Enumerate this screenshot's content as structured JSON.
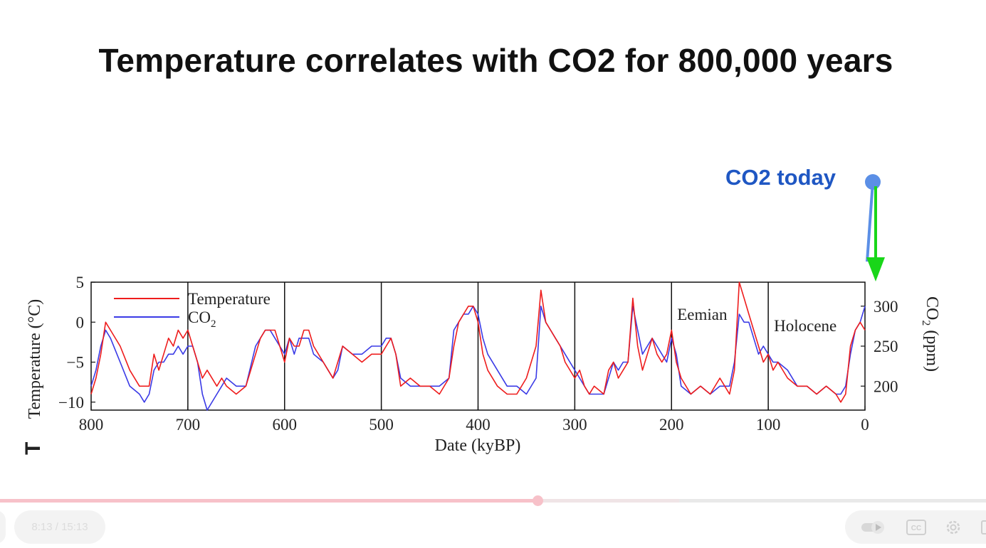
{
  "slide": {
    "title": "Temperature correlates with CO2 for 800,000 years",
    "annotation": "CO2 today",
    "stray_char": "T"
  },
  "colors": {
    "temperature": "#ee1c1c",
    "co2": "#3a3ae6",
    "annotation": "#1f57c3",
    "arrow": "#19d619",
    "dot": "#5b8fe6"
  },
  "chart_data": {
    "type": "line",
    "title": "",
    "xlabel": "Date (kyBP)",
    "ylabel_left": "Temperature (°C)",
    "ylabel_right": "CO2 (ppm)",
    "ylabel_right_sub": "2",
    "xlim": [
      800,
      0
    ],
    "ylim_left": [
      -11,
      5
    ],
    "ylim_right": [
      170,
      330
    ],
    "x_ticks": [
      800,
      700,
      600,
      500,
      400,
      300,
      200,
      100,
      0
    ],
    "x_tick_labels": [
      "800",
      "700",
      "600",
      "500",
      "400",
      "300",
      "200",
      "100",
      "0"
    ],
    "y_left_ticks": [
      5,
      0,
      -5,
      -10
    ],
    "y_left_tick_labels": [
      "5",
      "0",
      "−5",
      "−10"
    ],
    "y_right_ticks": [
      300,
      250,
      200
    ],
    "y_right_tick_labels": [
      "300",
      "250",
      "200"
    ],
    "vertical_lines": [
      700,
      600,
      500,
      400,
      300,
      200,
      100
    ],
    "legend": [
      {
        "name": "Temperature",
        "sub": ""
      },
      {
        "name": "CO",
        "sub": "2"
      }
    ],
    "annotations": [
      {
        "text": "Eemian",
        "x": 200
      },
      {
        "text": "Holocene",
        "x": 100
      }
    ],
    "series": [
      {
        "name": "Temperature",
        "axis": "left",
        "x": [
          800,
          795,
          790,
          785,
          780,
          770,
          760,
          750,
          745,
          740,
          735,
          730,
          725,
          720,
          715,
          710,
          705,
          700,
          695,
          690,
          685,
          680,
          670,
          665,
          660,
          650,
          640,
          630,
          625,
          620,
          615,
          610,
          600,
          595,
          590,
          585,
          580,
          575,
          570,
          560,
          555,
          550,
          545,
          540,
          530,
          520,
          510,
          500,
          495,
          490,
          485,
          480,
          470,
          460,
          450,
          440,
          430,
          425,
          420,
          415,
          410,
          405,
          400,
          395,
          390,
          380,
          370,
          360,
          350,
          340,
          335,
          330,
          325,
          320,
          315,
          310,
          300,
          295,
          290,
          285,
          280,
          270,
          265,
          260,
          255,
          250,
          245,
          240,
          235,
          230,
          225,
          220,
          215,
          210,
          205,
          200,
          195,
          190,
          180,
          170,
          160,
          150,
          140,
          135,
          130,
          125,
          120,
          115,
          110,
          105,
          100,
          95,
          90,
          80,
          70,
          60,
          50,
          40,
          30,
          25,
          20,
          15,
          10,
          5,
          0
        ],
        "values": [
          -9,
          -7,
          -4,
          0,
          -1,
          -3,
          -6,
          -8,
          -8,
          -8,
          -4,
          -6,
          -4,
          -2,
          -3,
          -1,
          -2,
          -1,
          -3,
          -5,
          -7,
          -6,
          -8,
          -7,
          -8,
          -9,
          -8,
          -4,
          -2,
          -1,
          -1,
          -1,
          -5,
          -2,
          -3,
          -3,
          -1,
          -1,
          -3,
          -5,
          -6,
          -7,
          -5,
          -3,
          -4,
          -5,
          -4,
          -4,
          -3,
          -2,
          -4,
          -8,
          -7,
          -8,
          -8,
          -9,
          -7,
          -3,
          0,
          1,
          2,
          2,
          0,
          -4,
          -6,
          -8,
          -9,
          -9,
          -7,
          -3,
          4,
          0,
          -1,
          -2,
          -3,
          -5,
          -7,
          -6,
          -8,
          -9,
          -8,
          -9,
          -6,
          -5,
          -7,
          -6,
          -5,
          3,
          -3,
          -6,
          -4,
          -2,
          -4,
          -5,
          -4,
          -1,
          -5,
          -7,
          -9,
          -8,
          -9,
          -7,
          -9,
          -6,
          5,
          3,
          1,
          -1,
          -3,
          -5,
          -4,
          -6,
          -5,
          -7,
          -8,
          -8,
          -9,
          -8,
          -9,
          -10,
          -9,
          -3,
          -1,
          0,
          -1
        ],
        "color": "#ee1c1c"
      },
      {
        "name": "CO2",
        "axis": "left",
        "x": [
          800,
          795,
          790,
          785,
          780,
          770,
          760,
          750,
          745,
          740,
          735,
          730,
          725,
          720,
          715,
          710,
          705,
          700,
          695,
          690,
          685,
          680,
          670,
          665,
          660,
          650,
          640,
          630,
          625,
          620,
          615,
          610,
          600,
          595,
          590,
          585,
          580,
          575,
          570,
          560,
          555,
          550,
          545,
          540,
          530,
          520,
          510,
          500,
          495,
          490,
          485,
          480,
          470,
          460,
          450,
          440,
          430,
          425,
          420,
          415,
          410,
          405,
          400,
          395,
          390,
          380,
          370,
          360,
          350,
          340,
          335,
          330,
          325,
          320,
          315,
          310,
          300,
          295,
          290,
          285,
          280,
          270,
          265,
          260,
          255,
          250,
          245,
          240,
          235,
          230,
          225,
          220,
          215,
          210,
          205,
          200,
          195,
          190,
          180,
          170,
          160,
          150,
          140,
          135,
          130,
          125,
          120,
          115,
          110,
          105,
          100,
          95,
          90,
          80,
          70,
          60,
          50,
          40,
          30,
          25,
          20,
          15,
          10,
          5,
          0
        ],
        "values": [
          -8,
          -6,
          -3,
          -1,
          -2,
          -5,
          -8,
          -9,
          -10,
          -9,
          -6,
          -5,
          -5,
          -4,
          -4,
          -3,
          -4,
          -3,
          -3,
          -5,
          -9,
          -11,
          -9,
          -8,
          -7,
          -8,
          -8,
          -3,
          -2,
          -1,
          -1,
          -2,
          -4,
          -2,
          -4,
          -2,
          -2,
          -2,
          -4,
          -5,
          -6,
          -7,
          -6,
          -3,
          -4,
          -4,
          -3,
          -3,
          -2,
          -2,
          -4,
          -7,
          -8,
          -8,
          -8,
          -8,
          -7,
          -1,
          0,
          1,
          1,
          2,
          1,
          -2,
          -4,
          -6,
          -8,
          -8,
          -9,
          -7,
          2,
          0,
          -1,
          -2,
          -3,
          -4,
          -6,
          -7,
          -8,
          -9,
          -9,
          -9,
          -7,
          -5,
          -6,
          -5,
          -5,
          2,
          -1,
          -4,
          -3,
          -2,
          -3,
          -4,
          -5,
          -2,
          -4,
          -8,
          -9,
          -8,
          -9,
          -8,
          -8,
          -5,
          1,
          0,
          0,
          -2,
          -4,
          -3,
          -4,
          -5,
          -5,
          -6,
          -8,
          -8,
          -9,
          -8,
          -9,
          -9,
          -8,
          -4,
          -1,
          0,
          2
        ],
        "color": "#3a3ae6"
      }
    ]
  },
  "player": {
    "time": "8:13 / 15:13",
    "progress": 0.545,
    "buffered": 0.689,
    "autoplay_icon": "autoplay-toggle-icon",
    "cc_label": "CC",
    "settings_icon": "gear-icon"
  }
}
